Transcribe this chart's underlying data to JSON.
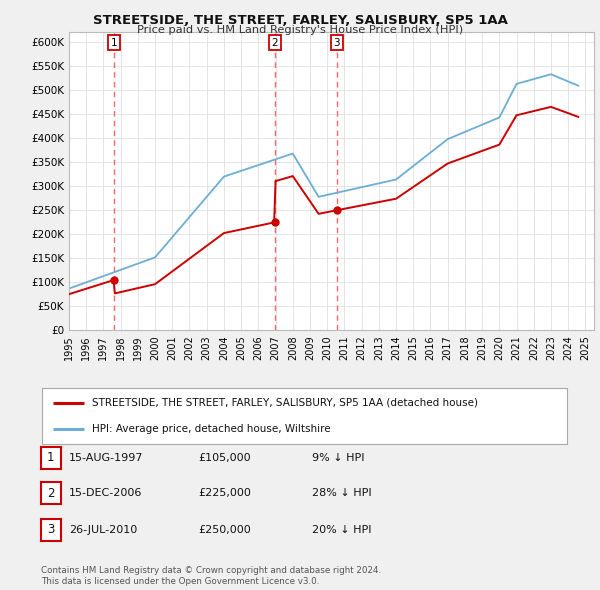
{
  "title": "STREETSIDE, THE STREET, FARLEY, SALISBURY, SP5 1AA",
  "subtitle": "Price paid vs. HM Land Registry's House Price Index (HPI)",
  "legend_line1": "STREETSIDE, THE STREET, FARLEY, SALISBURY, SP5 1AA (detached house)",
  "legend_line2": "HPI: Average price, detached house, Wiltshire",
  "footer1": "Contains HM Land Registry data © Crown copyright and database right 2024.",
  "footer2": "This data is licensed under the Open Government Licence v3.0.",
  "table": [
    {
      "num": "1",
      "date": "15-AUG-1997",
      "price": "£105,000",
      "hpi": "9% ↓ HPI"
    },
    {
      "num": "2",
      "date": "15-DEC-2006",
      "price": "£225,000",
      "hpi": "28% ↓ HPI"
    },
    {
      "num": "3",
      "date": "26-JUL-2010",
      "price": "£250,000",
      "hpi": "20% ↓ HPI"
    }
  ],
  "sale_points": [
    {
      "year": 1997.62,
      "price": 105000,
      "label": "1"
    },
    {
      "year": 2006.96,
      "price": 225000,
      "label": "2"
    },
    {
      "year": 2010.56,
      "price": 250000,
      "label": "3"
    }
  ],
  "sale_vlines": [
    1997.62,
    2006.96,
    2010.56
  ],
  "hpi_color": "#6baed6",
  "sale_color": "#cc0000",
  "vline_color": "#ff6666",
  "ylim": [
    0,
    620000
  ],
  "xlim": [
    1995,
    2025.5
  ],
  "yticks": [
    0,
    50000,
    100000,
    150000,
    200000,
    250000,
    300000,
    350000,
    400000,
    450000,
    500000,
    550000,
    600000
  ],
  "xticks": [
    1995,
    1996,
    1997,
    1998,
    1999,
    2000,
    2001,
    2002,
    2003,
    2004,
    2005,
    2006,
    2007,
    2008,
    2009,
    2010,
    2011,
    2012,
    2013,
    2014,
    2015,
    2016,
    2017,
    2018,
    2019,
    2020,
    2021,
    2022,
    2023,
    2024,
    2025
  ],
  "background_color": "#f0f0f0",
  "plot_bg_color": "#ffffff"
}
